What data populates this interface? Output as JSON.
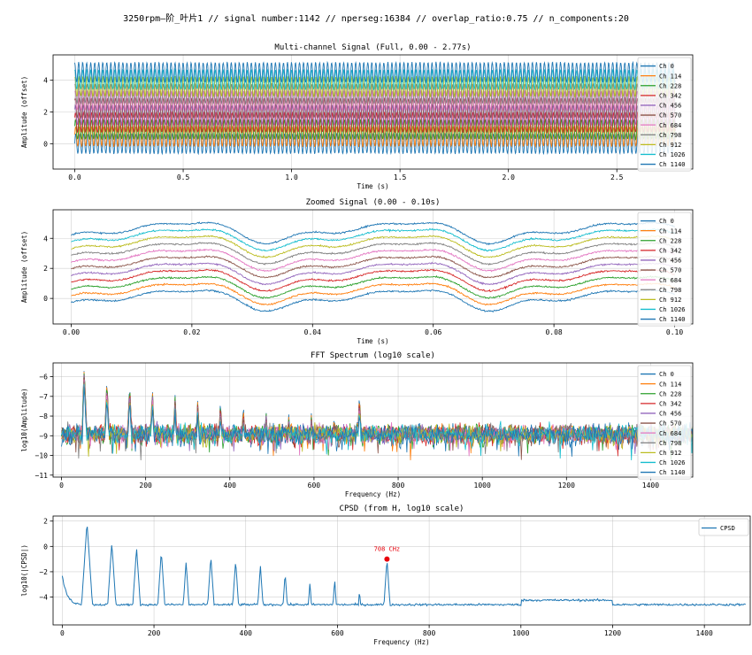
{
  "suptitle": "3250rpm—阶_叶片1 // signal number:1142 // nperseg:16384 // overlap_ratio:0.75 // n_components:20",
  "colors": [
    "#1f77b4",
    "#ff7f0e",
    "#2ca02c",
    "#d62728",
    "#9467bd",
    "#8c564b",
    "#e377c2",
    "#7f7f7f",
    "#bcbd22",
    "#17becf",
    "#1f77b4"
  ],
  "cpsd_color": "#1f77b4",
  "marker_color": "#e8000b",
  "chart_data": [
    {
      "type": "line",
      "title": "Multi-channel Signal (Full, 0.00 - 2.77s)",
      "xlabel": "Time (s)",
      "ylabel": "Amplitude (offset)",
      "xlim": [
        -0.1,
        2.85
      ],
      "ylim": [
        -1.6,
        5.6
      ],
      "xticks": [
        0.0,
        0.5,
        1.0,
        1.5,
        2.0,
        2.5
      ],
      "xtick_labels": [
        "0.0",
        "0.5",
        "1.0",
        "1.5",
        "2.0",
        "2.5"
      ],
      "yticks": [
        0,
        2,
        4
      ],
      "ytick_labels": [
        "0",
        "2",
        "4"
      ],
      "grid": true,
      "legend": "upper right",
      "series_names": [
        "Ch 0",
        "Ch 114",
        "Ch 228",
        "Ch 342",
        "Ch 456",
        "Ch 570",
        "Ch 684",
        "Ch 798",
        "Ch 912",
        "Ch 1026",
        "Ch 1140"
      ],
      "channel_offsets": [
        0.0,
        0.45,
        0.9,
        1.35,
        1.8,
        2.25,
        2.7,
        3.15,
        3.6,
        4.05,
        4.5
      ],
      "x_range": [
        0.0,
        2.77
      ],
      "fundamental_hz": 54,
      "peak_to_peak": 1.3
    },
    {
      "type": "line",
      "title": "Zoomed Signal (0.00 - 0.10s)",
      "xlabel": "Time (s)",
      "ylabel": "Amplitude (offset)",
      "xlim": [
        -0.003,
        0.103
      ],
      "ylim": [
        -1.7,
        5.9
      ],
      "xticks": [
        0.0,
        0.02,
        0.04,
        0.06,
        0.08,
        0.1
      ],
      "xtick_labels": [
        "0.00",
        "0.02",
        "0.04",
        "0.06",
        "0.08",
        "0.10"
      ],
      "yticks": [
        0,
        2,
        4
      ],
      "ytick_labels": [
        "0",
        "2",
        "4"
      ],
      "grid": true,
      "legend": "upper right",
      "series_names": [
        "Ch 0",
        "Ch 114",
        "Ch 228",
        "Ch 342",
        "Ch 456",
        "Ch 570",
        "Ch 684",
        "Ch 798",
        "Ch 912",
        "Ch 1026",
        "Ch 1140"
      ],
      "channel_offsets": [
        0.0,
        0.45,
        0.9,
        1.35,
        1.8,
        2.25,
        2.7,
        3.15,
        3.6,
        4.05,
        4.5
      ],
      "x_range": [
        0.0,
        0.1
      ],
      "fundamental_hz": 27
    },
    {
      "type": "line",
      "title": "FFT Spectrum (log10 scale)",
      "xlabel": "Frequency (Hz)",
      "ylabel": "log10(Amplitude)",
      "xlim": [
        -20,
        1500
      ],
      "ylim": [
        -11.1,
        -5.3
      ],
      "xticks": [
        0,
        200,
        400,
        600,
        800,
        1000,
        1200,
        1400
      ],
      "xtick_labels": [
        "0",
        "200",
        "400",
        "600",
        "800",
        "1000",
        "1200",
        "1400"
      ],
      "yticks": [
        -11,
        -10,
        -9,
        -8,
        -7,
        -6
      ],
      "ytick_labels": [
        "−11",
        "−10",
        "−9",
        "−8",
        "−7",
        "−6"
      ],
      "grid": true,
      "legend": "upper right",
      "series_names": [
        "Ch 0",
        "Ch 114",
        "Ch 228",
        "Ch 342",
        "Ch 456",
        "Ch 570",
        "Ch 684",
        "Ch 798",
        "Ch 912",
        "Ch 1026",
        "Ch 1140"
      ],
      "x_range": [
        0,
        1500
      ],
      "noise_floor": -8.9,
      "peaks": [
        {
          "f": 54,
          "v": -5.5
        },
        {
          "f": 108,
          "v": -6.1
        },
        {
          "f": 162,
          "v": -6.3
        },
        {
          "f": 216,
          "v": -6.6
        },
        {
          "f": 270,
          "v": -6.9
        },
        {
          "f": 324,
          "v": -7.0
        },
        {
          "f": 378,
          "v": -7.1
        },
        {
          "f": 432,
          "v": -7.4
        },
        {
          "f": 486,
          "v": -7.6
        },
        {
          "f": 540,
          "v": -8.0
        },
        {
          "f": 594,
          "v": -7.7
        },
        {
          "f": 648,
          "v": -7.8
        },
        {
          "f": 702,
          "v": -7.9
        },
        {
          "f": 708,
          "v": -6.8
        }
      ]
    },
    {
      "type": "line",
      "title": "CPSD (from H, log10 scale)",
      "xlabel": "Frequency (Hz)",
      "ylabel": "log10(|CPSD|)",
      "xlim": [
        -20,
        1500
      ],
      "ylim": [
        -6.2,
        2.4
      ],
      "xticks": [
        0,
        200,
        400,
        600,
        800,
        1000,
        1200,
        1400
      ],
      "xtick_labels": [
        "0",
        "200",
        "400",
        "600",
        "800",
        "1000",
        "1200",
        "1400"
      ],
      "yticks": [
        -4,
        -2,
        0,
        2
      ],
      "ytick_labels": [
        "−4",
        "−2",
        "0",
        "2"
      ],
      "grid": true,
      "legend": "upper right",
      "series_names": [
        "CPSD"
      ],
      "x_range": [
        0,
        1490
      ],
      "baseline": -4.6,
      "peaks": [
        {
          "f": 0,
          "v": -2.3
        },
        {
          "f": 54,
          "v": 1.9
        },
        {
          "f": 108,
          "v": 0.3
        },
        {
          "f": 162,
          "v": -0.1
        },
        {
          "f": 216,
          "v": -0.4
        },
        {
          "f": 270,
          "v": -1.2
        },
        {
          "f": 324,
          "v": -0.8
        },
        {
          "f": 378,
          "v": -1.1
        },
        {
          "f": 432,
          "v": -1.5
        },
        {
          "f": 486,
          "v": -2.1
        },
        {
          "f": 540,
          "v": -2.8
        },
        {
          "f": 594,
          "v": -2.6
        },
        {
          "f": 648,
          "v": -3.4
        },
        {
          "f": 708,
          "v": -1.0
        }
      ],
      "annotation": {
        "text": "708 CHz",
        "x": 708,
        "y": -1.0
      }
    }
  ]
}
